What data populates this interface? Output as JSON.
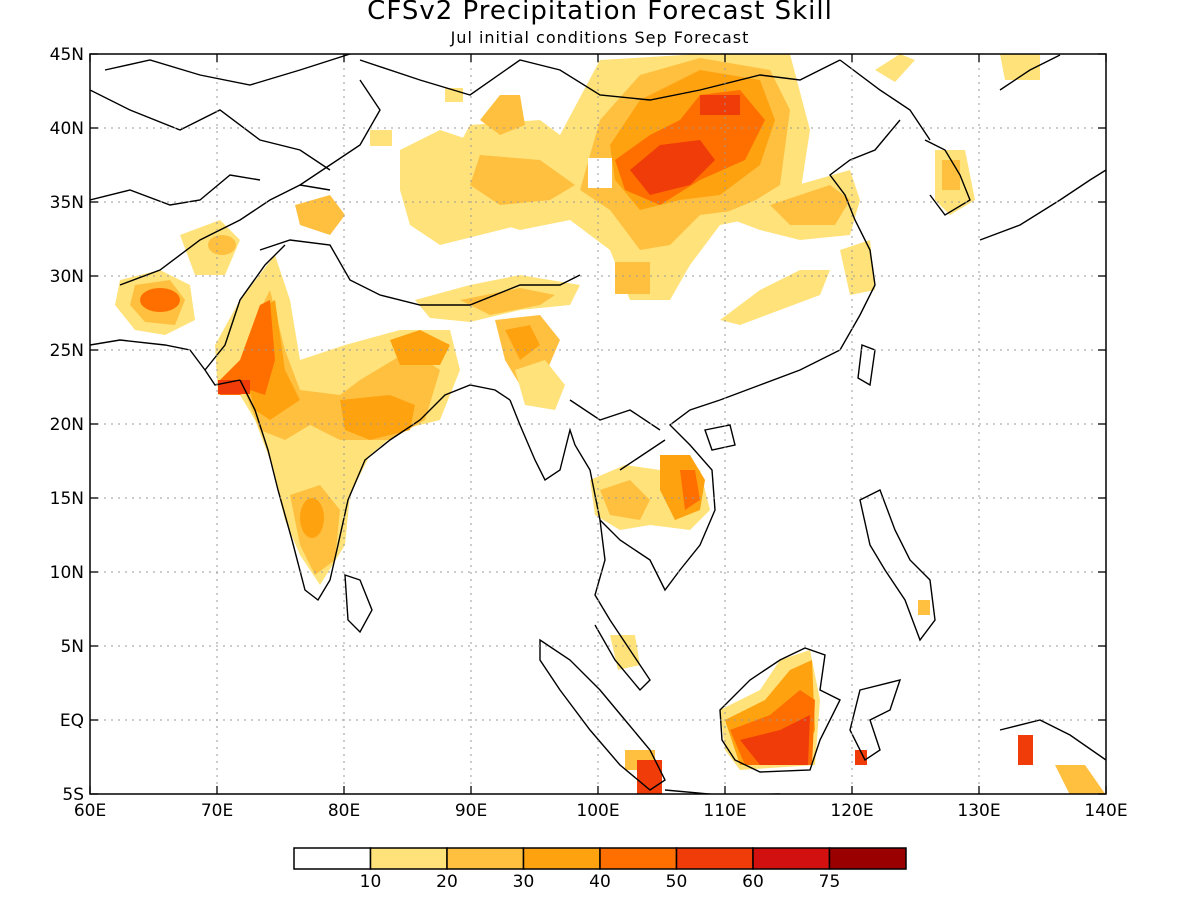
{
  "title": "CFSv2 Precipitation Forecast Skill",
  "subtitle": "Jul initial conditions  Sep Forecast",
  "map": {
    "lon_range": [
      60,
      140
    ],
    "lat_range": [
      -5,
      45
    ],
    "x_ticks": [
      "60E",
      "70E",
      "80E",
      "90E",
      "100E",
      "110E",
      "120E",
      "130E",
      "140E"
    ],
    "y_ticks": [
      "45N",
      "40N",
      "35N",
      "30N",
      "25N",
      "20N",
      "15N",
      "10N",
      "5N",
      "EQ",
      "5S"
    ],
    "gridlines": "dotted"
  },
  "colorbar": {
    "labels": [
      "10",
      "20",
      "30",
      "40",
      "50",
      "60",
      "75"
    ],
    "colors": [
      "#ffffff",
      "#ffe27a",
      "#ffc040",
      "#ffa210",
      "#ff6f00",
      "#ef3c08",
      "#d21010",
      "#9a0000"
    ]
  }
}
